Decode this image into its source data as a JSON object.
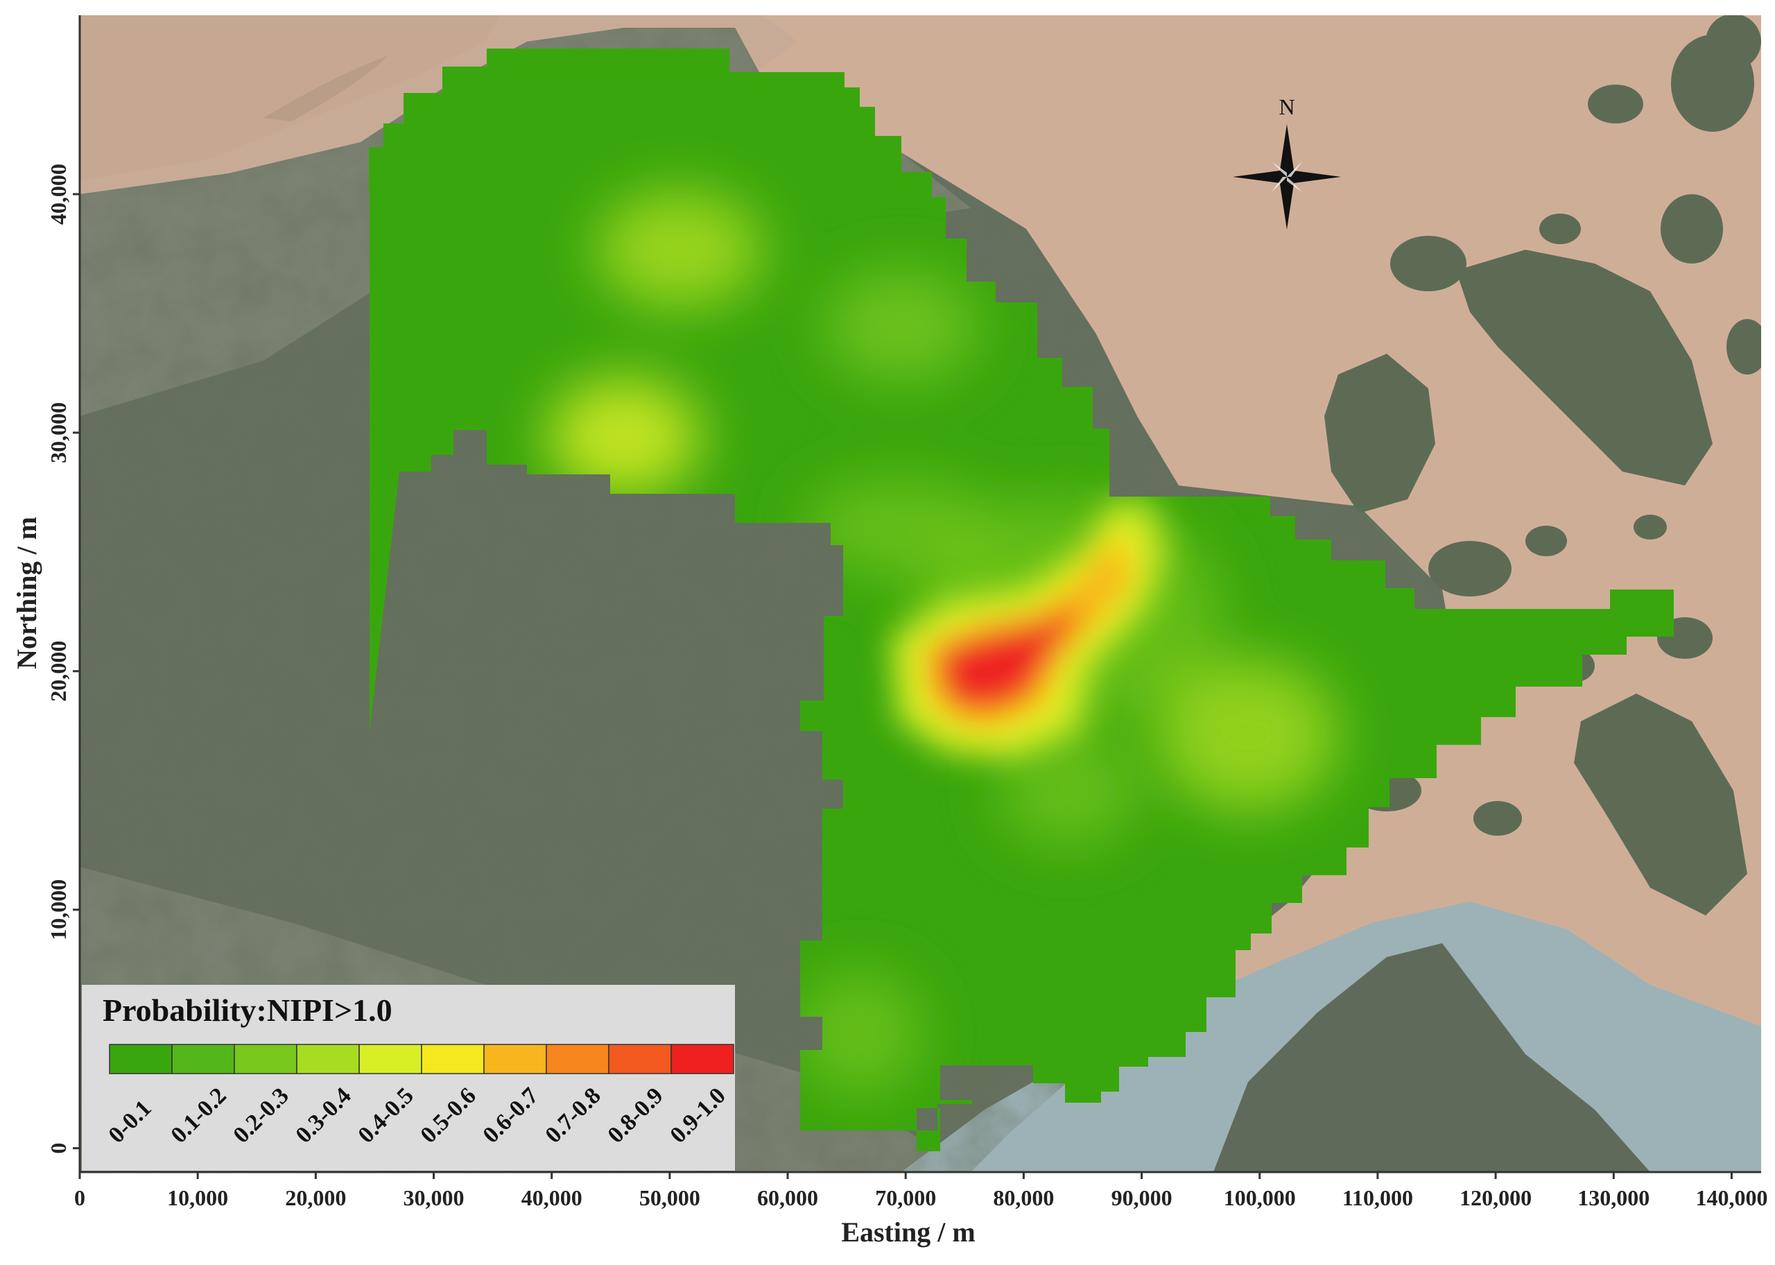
{
  "figure": {
    "xlabel": "Easting / m",
    "ylabel": "Northing / m",
    "x_ticks": [
      {
        "value": 0,
        "label": "0"
      },
      {
        "value": 10000,
        "label": "10,000"
      },
      {
        "value": 20000,
        "label": "20,000"
      },
      {
        "value": 30000,
        "label": "30,000"
      },
      {
        "value": 40000,
        "label": "40,000"
      },
      {
        "value": 50000,
        "label": "50,000"
      },
      {
        "value": 60000,
        "label": "60,000"
      },
      {
        "value": 70000,
        "label": "70,000"
      },
      {
        "value": 80000,
        "label": "80,000"
      },
      {
        "value": 90000,
        "label": "90,000"
      },
      {
        "value": 100000,
        "label": "100,000"
      },
      {
        "value": 110000,
        "label": "110,000"
      },
      {
        "value": 120000,
        "label": "120,000"
      },
      {
        "value": 130000,
        "label": "130,000"
      },
      {
        "value": 140000,
        "label": "140,000"
      }
    ],
    "y_ticks": [
      {
        "value": 0,
        "label": "0"
      },
      {
        "value": 10000,
        "label": "10,000"
      },
      {
        "value": 20000,
        "label": "20,000"
      },
      {
        "value": 30000,
        "label": "30,000"
      },
      {
        "value": 40000,
        "label": "40,000"
      }
    ],
    "xlim": [
      0,
      142500
    ],
    "ylim": [
      -1000,
      47500
    ],
    "north_label": "N"
  },
  "legend": {
    "title": "Probability:NIPI>1.0",
    "classes": [
      {
        "label": "0-0.1",
        "color": "#3aa60e"
      },
      {
        "label": "0.1-0.2",
        "color": "#53b61a"
      },
      {
        "label": "0.2-0.3",
        "color": "#78c81e"
      },
      {
        "label": "0.3-0.4",
        "color": "#a8dc22"
      },
      {
        "label": "0.4-0.5",
        "color": "#d8ef26"
      },
      {
        "label": "0.5-0.6",
        "color": "#f5e81e"
      },
      {
        "label": "0.6-0.7",
        "color": "#f8b51d"
      },
      {
        "label": "0.7-0.8",
        "color": "#f7861e"
      },
      {
        "label": "0.8-0.9",
        "color": "#f35a1f"
      },
      {
        "label": "0.9-1.0",
        "color": "#ee2020"
      }
    ]
  },
  "colors": {
    "sea": "#cfae98",
    "land": "#66705f",
    "axis": "#333333"
  }
}
